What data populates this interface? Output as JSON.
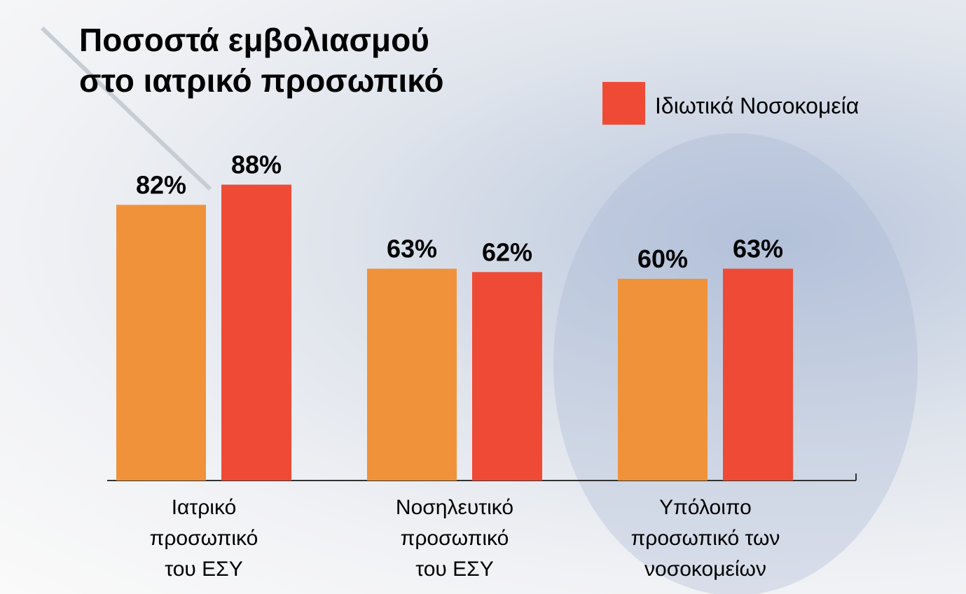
{
  "chart_data": {
    "type": "bar",
    "title": "Ποσοστά εμβολιασμού\nστο ιατρικό προσωπικό",
    "categories": [
      "Ιατρικό\nπροσωπικό\nτου ΕΣΥ",
      "Νοσηλευτικό\nπροσωπικό\nτου ΕΣΥ",
      "Υπόλοιπο\nπροσωπικό των\nνοσοκομείων"
    ],
    "series": [
      {
        "color": "#f0923a",
        "values": [
          82,
          63,
          60
        ],
        "value_labels": [
          "82%",
          "63%",
          "60%"
        ]
      },
      {
        "name": "Ιδιωτικά Νοσοκομεία",
        "color": "#ef4a36",
        "values": [
          88,
          62,
          63
        ],
        "value_labels": [
          "88%",
          "62%",
          "63%"
        ]
      }
    ]
  }
}
